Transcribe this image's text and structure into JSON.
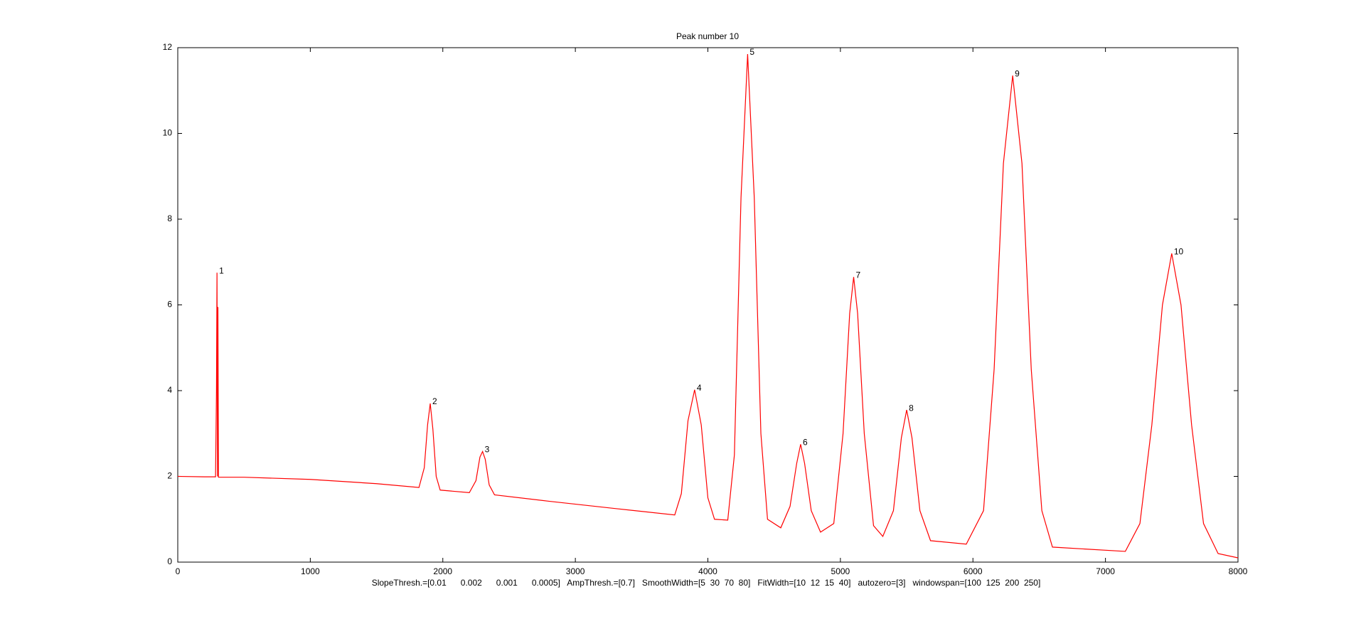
{
  "chart_data": {
    "type": "line",
    "title": "Peak number 10",
    "caption": "SlopeThresh.=[0.01      0.002      0.001      0.0005]   AmpThresh.=[0.7]   SmoothWidth=[5  30  70  80]   FitWidth=[10  12  15  40]   autozero=[3]   windowspan=[100  125  200  250]",
    "color": "#ff0000",
    "x": [
      0,
      200,
      285,
      292,
      296,
      300,
      303,
      307,
      500,
      1000,
      1500,
      1820,
      1860,
      1885,
      1905,
      1925,
      1950,
      1980,
      2200,
      2250,
      2280,
      2300,
      2320,
      2350,
      2390,
      2800,
      3300,
      3750,
      3800,
      3850,
      3900,
      3950,
      4000,
      4050,
      4150,
      4200,
      4250,
      4300,
      4350,
      4400,
      4450,
      4550,
      4620,
      4670,
      4700,
      4730,
      4780,
      4850,
      4950,
      5020,
      5070,
      5100,
      5130,
      5180,
      5250,
      5320,
      5400,
      5460,
      5500,
      5540,
      5600,
      5680,
      5950,
      6080,
      6160,
      6230,
      6300,
      6370,
      6440,
      6520,
      6600,
      7150,
      7260,
      7350,
      7430,
      7500,
      7570,
      7650,
      7740,
      7850,
      8000
    ],
    "values": [
      2.0,
      1.99,
      1.99,
      4.0,
      6.75,
      2.0,
      5.95,
      1.98,
      1.98,
      1.93,
      1.83,
      1.74,
      2.2,
      3.2,
      3.7,
      3.1,
      2.0,
      1.68,
      1.62,
      1.9,
      2.45,
      2.58,
      2.4,
      1.8,
      1.57,
      1.42,
      1.25,
      1.1,
      1.6,
      3.3,
      4.02,
      3.2,
      1.5,
      1.0,
      0.98,
      2.5,
      8.5,
      11.85,
      8.5,
      3.0,
      1.0,
      0.8,
      1.3,
      2.3,
      2.75,
      2.3,
      1.2,
      0.7,
      0.9,
      3.0,
      5.8,
      6.65,
      5.8,
      3.0,
      0.85,
      0.6,
      1.2,
      2.9,
      3.55,
      2.9,
      1.2,
      0.5,
      0.42,
      1.2,
      4.5,
      9.3,
      11.35,
      9.3,
      4.5,
      1.2,
      0.35,
      0.25,
      0.9,
      3.2,
      6.0,
      7.2,
      6.0,
      3.2,
      0.9,
      0.2,
      0.1
    ],
    "annotations": [
      {
        "text": "1",
        "x": 296,
        "y": 6.75
      },
      {
        "text": "2",
        "x": 1905,
        "y": 3.7
      },
      {
        "text": "3",
        "x": 2300,
        "y": 2.58
      },
      {
        "text": "4",
        "x": 3900,
        "y": 4.02
      },
      {
        "text": "5",
        "x": 4300,
        "y": 11.85
      },
      {
        "text": "6",
        "x": 4700,
        "y": 2.75
      },
      {
        "text": "7",
        "x": 5100,
        "y": 6.65
      },
      {
        "text": "8",
        "x": 5500,
        "y": 3.55
      },
      {
        "text": "9",
        "x": 6300,
        "y": 11.35
      },
      {
        "text": "10",
        "x": 7500,
        "y": 7.2
      }
    ],
    "xlim": [
      0,
      8000
    ],
    "xticks": [
      0,
      1000,
      2000,
      3000,
      4000,
      5000,
      6000,
      7000,
      8000
    ],
    "ylim": [
      0,
      12
    ],
    "yticks": [
      0,
      2,
      4,
      6,
      8,
      10,
      12
    ],
    "grid": false
  }
}
